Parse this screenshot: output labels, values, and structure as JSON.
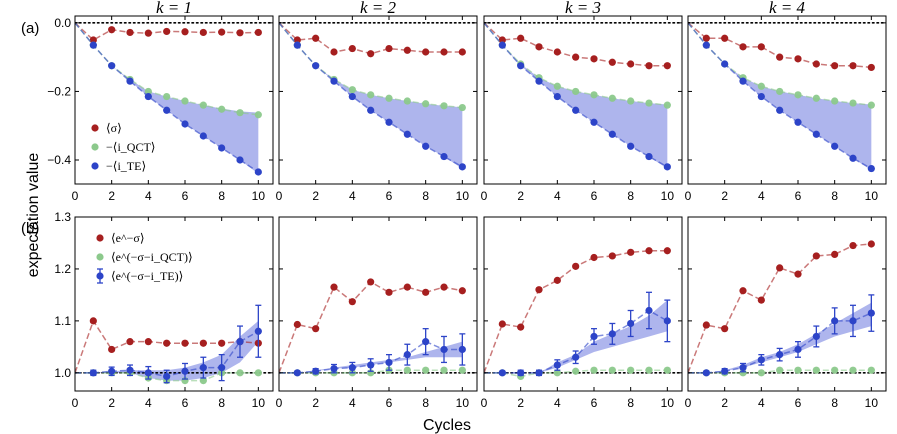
{
  "figure": {
    "xlabel": "Cycles",
    "ylabel": "expectation value",
    "panel_labels": [
      "(a)",
      "(b)"
    ],
    "column_titles": [
      "k = 1",
      "k = 2",
      "k = 3",
      "k = 4"
    ],
    "colors": {
      "red": "#a61f1f",
      "green": "#8cc98c",
      "blue": "#2d44c8",
      "band": "#8c96e6"
    }
  },
  "legend_a": [
    "⟨σ⟩",
    "−⟨i_QCT⟩",
    "−⟨i_TE⟩"
  ],
  "legend_b": [
    "⟨e^−σ⟩",
    "⟨e^(−σ−i_QCT)⟩",
    "⟨e^(−σ−i_TE)⟩"
  ],
  "chart_data": [
    {
      "type": "line",
      "row": "a",
      "title": "k = 1",
      "xlim": [
        0,
        10.8
      ],
      "ylim": [
        -0.47,
        0.02
      ],
      "xticks": [
        0,
        2,
        4,
        6,
        8,
        10
      ],
      "yticks": [
        0.0,
        -0.2,
        -0.4
      ],
      "ytick_labels": [
        "0.0",
        "−0.2",
        "−0.4"
      ],
      "x": [
        1,
        2,
        3,
        4,
        5,
        6,
        7,
        8,
        9,
        10
      ],
      "series": [
        {
          "name": "⟨σ⟩",
          "values": [
            -0.05,
            -0.02,
            -0.028,
            -0.03,
            -0.025,
            -0.026,
            -0.028,
            -0.027,
            -0.029,
            -0.028
          ]
        },
        {
          "name": "−⟨i_QCT⟩",
          "values": [
            -0.065,
            -0.125,
            -0.165,
            -0.2,
            -0.215,
            -0.228,
            -0.24,
            -0.252,
            -0.262,
            -0.268
          ]
        },
        {
          "name": "−⟨i_TE⟩",
          "values": [
            -0.065,
            -0.125,
            -0.17,
            -0.215,
            -0.255,
            -0.295,
            -0.33,
            -0.365,
            -0.4,
            -0.435
          ]
        }
      ],
      "band": {
        "lower": [
          -0.065,
          -0.125,
          -0.17,
          -0.215,
          -0.255,
          -0.295,
          -0.33,
          -0.365,
          -0.4,
          -0.44
        ],
        "upper": [
          -0.065,
          -0.125,
          -0.165,
          -0.2,
          -0.215,
          -0.228,
          -0.24,
          -0.25,
          -0.258,
          -0.262
        ]
      },
      "hline": 0.0
    },
    {
      "type": "line",
      "row": "a",
      "title": "k = 2",
      "xlim": [
        0,
        10.8
      ],
      "ylim": [
        -0.47,
        0.02
      ],
      "xticks": [
        0,
        2,
        4,
        6,
        8,
        10
      ],
      "yticks": [
        0.0,
        -0.2,
        -0.4
      ],
      "ytick_labels": [
        "",
        "",
        ""
      ],
      "x": [
        1,
        2,
        3,
        4,
        5,
        6,
        7,
        8,
        9,
        10
      ],
      "series": [
        {
          "name": "⟨σ⟩",
          "values": [
            -0.05,
            -0.045,
            -0.085,
            -0.075,
            -0.09,
            -0.075,
            -0.08,
            -0.085,
            -0.085,
            -0.085
          ]
        },
        {
          "name": "−⟨i_QCT⟩",
          "values": [
            -0.065,
            -0.125,
            -0.165,
            -0.195,
            -0.21,
            -0.22,
            -0.228,
            -0.236,
            -0.242,
            -0.247
          ]
        },
        {
          "name": "−⟨i_TE⟩",
          "values": [
            -0.065,
            -0.125,
            -0.17,
            -0.215,
            -0.255,
            -0.29,
            -0.325,
            -0.36,
            -0.39,
            -0.42
          ]
        }
      ],
      "band": {
        "lower": [
          -0.065,
          -0.125,
          -0.17,
          -0.215,
          -0.255,
          -0.29,
          -0.325,
          -0.36,
          -0.39,
          -0.425
        ],
        "upper": [
          -0.065,
          -0.125,
          -0.165,
          -0.195,
          -0.21,
          -0.22,
          -0.228,
          -0.236,
          -0.242,
          -0.246
        ]
      },
      "hline": 0.0
    },
    {
      "type": "line",
      "row": "a",
      "title": "k = 3",
      "xlim": [
        0,
        10.8
      ],
      "ylim": [
        -0.47,
        0.02
      ],
      "xticks": [
        0,
        2,
        4,
        6,
        8,
        10
      ],
      "yticks": [
        0.0,
        -0.2,
        -0.4
      ],
      "ytick_labels": [
        "",
        "",
        ""
      ],
      "x": [
        1,
        2,
        3,
        4,
        5,
        6,
        7,
        8,
        9,
        10
      ],
      "series": [
        {
          "name": "⟨σ⟩",
          "values": [
            -0.05,
            -0.045,
            -0.07,
            -0.085,
            -0.1,
            -0.105,
            -0.115,
            -0.12,
            -0.125,
            -0.125
          ]
        },
        {
          "name": "−⟨i_QCT⟩",
          "values": [
            -0.065,
            -0.12,
            -0.16,
            -0.185,
            -0.2,
            -0.21,
            -0.22,
            -0.228,
            -0.234,
            -0.24
          ]
        },
        {
          "name": "−⟨i_TE⟩",
          "values": [
            -0.065,
            -0.125,
            -0.17,
            -0.215,
            -0.255,
            -0.29,
            -0.325,
            -0.36,
            -0.39,
            -0.42
          ]
        }
      ],
      "band": {
        "lower": [
          -0.065,
          -0.125,
          -0.17,
          -0.215,
          -0.255,
          -0.29,
          -0.325,
          -0.36,
          -0.39,
          -0.425
        ],
        "upper": [
          -0.065,
          -0.12,
          -0.16,
          -0.185,
          -0.2,
          -0.21,
          -0.22,
          -0.228,
          -0.234,
          -0.238
        ]
      },
      "hline": 0.0
    },
    {
      "type": "line",
      "row": "a",
      "title": "k = 4",
      "xlim": [
        0,
        10.8
      ],
      "ylim": [
        -0.47,
        0.02
      ],
      "xticks": [
        0,
        2,
        4,
        6,
        8,
        10
      ],
      "yticks": [
        0.0,
        -0.2,
        -0.4
      ],
      "ytick_labels": [
        "",
        "",
        ""
      ],
      "x": [
        1,
        2,
        3,
        4,
        5,
        6,
        7,
        8,
        9,
        10
      ],
      "series": [
        {
          "name": "⟨σ⟩",
          "values": [
            -0.045,
            -0.045,
            -0.07,
            -0.07,
            -0.1,
            -0.105,
            -0.12,
            -0.125,
            -0.125,
            -0.13
          ]
        },
        {
          "name": "−⟨i_QCT⟩",
          "values": [
            -0.065,
            -0.12,
            -0.16,
            -0.185,
            -0.2,
            -0.21,
            -0.22,
            -0.228,
            -0.234,
            -0.24
          ]
        },
        {
          "name": "−⟨i_TE⟩",
          "values": [
            -0.065,
            -0.12,
            -0.17,
            -0.215,
            -0.255,
            -0.29,
            -0.325,
            -0.36,
            -0.395,
            -0.425
          ]
        }
      ],
      "band": {
        "lower": [
          -0.065,
          -0.12,
          -0.17,
          -0.215,
          -0.255,
          -0.29,
          -0.325,
          -0.36,
          -0.395,
          -0.43
        ],
        "upper": [
          -0.065,
          -0.12,
          -0.16,
          -0.185,
          -0.2,
          -0.21,
          -0.22,
          -0.228,
          -0.234,
          -0.238
        ]
      },
      "hline": 0.0
    },
    {
      "type": "line",
      "row": "b",
      "title": "k = 1",
      "xlim": [
        0,
        10.8
      ],
      "ylim": [
        0.965,
        1.3
      ],
      "xticks": [
        0,
        2,
        4,
        6,
        8,
        10
      ],
      "xtick_labels": [
        "0",
        "2",
        "4",
        "6",
        "8",
        "10"
      ],
      "yticks": [
        1.0,
        1.1,
        1.2,
        1.3
      ],
      "ytick_labels": [
        "1.0",
        "1.1",
        "1.2",
        "1.3"
      ],
      "x": [
        1,
        2,
        3,
        4,
        5,
        6,
        7,
        8,
        9,
        10
      ],
      "series": [
        {
          "name": "⟨e^−σ⟩",
          "values": [
            1.1,
            1.045,
            1.06,
            1.06,
            1.057,
            1.057,
            1.057,
            1.057,
            1.06,
            1.057
          ]
        },
        {
          "name": "⟨e^(−σ−i_QCT)⟩",
          "values": [
            1.0,
            1.0,
            1.0,
            0.99,
            0.985,
            0.985,
            0.985,
            1.0,
            1.0,
            1.0
          ]
        },
        {
          "name": "⟨e^(−σ−i_TE)⟩",
          "values": [
            1.0,
            1.003,
            1.005,
            1.0,
            0.993,
            1.003,
            1.01,
            1.01,
            1.06,
            1.08
          ],
          "err": [
            0.005,
            0.008,
            0.01,
            0.012,
            0.012,
            0.015,
            0.02,
            0.025,
            0.03,
            0.05
          ]
        }
      ],
      "band": {
        "lower": [
          1.0,
          1.0,
          1.0,
          0.99,
          0.985,
          0.985,
          0.99,
          1.0,
          1.02,
          1.06
        ],
        "upper": [
          1.0,
          1.003,
          1.005,
          1.005,
          1.005,
          1.01,
          1.02,
          1.035,
          1.07,
          1.1
        ]
      },
      "hline": 1.0
    },
    {
      "type": "line",
      "row": "b",
      "title": "k = 2",
      "xlim": [
        0,
        10.8
      ],
      "ylim": [
        0.965,
        1.3
      ],
      "xticks": [
        0,
        2,
        4,
        6,
        8,
        10
      ],
      "xtick_labels": [
        "0",
        "2",
        "4",
        "6",
        "8",
        "10"
      ],
      "yticks": [
        1.0,
        1.1,
        1.2,
        1.3
      ],
      "ytick_labels": [
        "",
        "",
        "",
        ""
      ],
      "x": [
        1,
        2,
        3,
        4,
        5,
        6,
        7,
        8,
        9,
        10
      ],
      "series": [
        {
          "name": "⟨e^−σ⟩",
          "values": [
            1.093,
            1.085,
            1.165,
            1.137,
            1.175,
            1.155,
            1.165,
            1.155,
            1.165,
            1.158
          ]
        },
        {
          "name": "⟨e^(−σ−i_QCT)⟩",
          "values": [
            1.0,
            1.0,
            1.0,
            1.0,
            1.0,
            1.005,
            1.005,
            1.005,
            1.005,
            1.005
          ]
        },
        {
          "name": "⟨e^(−σ−i_TE)⟩",
          "values": [
            1.0,
            1.003,
            1.008,
            1.01,
            1.015,
            1.02,
            1.035,
            1.06,
            1.045,
            1.045
          ],
          "err": [
            0.003,
            0.005,
            0.008,
            0.01,
            0.012,
            0.015,
            0.02,
            0.025,
            0.025,
            0.03
          ]
        }
      ],
      "band": {
        "lower": [
          1.0,
          1.003,
          1.008,
          1.01,
          1.015,
          1.02,
          1.025,
          1.03,
          1.03,
          1.03
        ],
        "upper": [
          1.0,
          1.005,
          1.01,
          1.015,
          1.02,
          1.025,
          1.03,
          1.04,
          1.05,
          1.06
        ]
      },
      "hline": 1.0
    },
    {
      "type": "line",
      "row": "b",
      "title": "k = 3",
      "xlim": [
        0,
        10.8
      ],
      "ylim": [
        0.965,
        1.3
      ],
      "xticks": [
        0,
        2,
        4,
        6,
        8,
        10
      ],
      "xtick_labels": [
        "0",
        "2",
        "4",
        "6",
        "8",
        "10"
      ],
      "yticks": [
        1.0,
        1.1,
        1.2,
        1.3
      ],
      "ytick_labels": [
        "",
        "",
        "",
        ""
      ],
      "x": [
        1,
        2,
        3,
        4,
        5,
        6,
        7,
        8,
        9,
        10
      ],
      "series": [
        {
          "name": "⟨e^−σ⟩",
          "values": [
            1.094,
            1.088,
            1.16,
            1.178,
            1.205,
            1.222,
            1.225,
            1.232,
            1.235,
            1.235
          ]
        },
        {
          "name": "⟨e^(−σ−i_QCT)⟩",
          "values": [
            1.0,
            0.993,
            1.0,
            1.0,
            1.003,
            1.005,
            1.005,
            1.005,
            1.005,
            1.005
          ]
        },
        {
          "name": "⟨e^(−σ−i_TE)⟩",
          "values": [
            1.0,
            1.0,
            1.0,
            1.015,
            1.03,
            1.07,
            1.075,
            1.095,
            1.12,
            1.1
          ],
          "err": [
            0.003,
            0.005,
            0.005,
            0.01,
            0.012,
            0.015,
            0.02,
            0.025,
            0.035,
            0.04
          ]
        }
      ],
      "band": {
        "lower": [
          1.0,
          1.0,
          1.0,
          1.01,
          1.025,
          1.04,
          1.05,
          1.06,
          1.07,
          1.08
        ],
        "upper": [
          1.0,
          1.0,
          1.0,
          1.02,
          1.035,
          1.06,
          1.075,
          1.09,
          1.11,
          1.14
        ]
      },
      "hline": 1.0
    },
    {
      "type": "line",
      "row": "b",
      "title": "k = 4",
      "xlim": [
        0,
        10.8
      ],
      "ylim": [
        0.965,
        1.3
      ],
      "xticks": [
        0,
        2,
        4,
        6,
        8,
        10
      ],
      "xtick_labels": [
        "0",
        "2",
        "4",
        "6",
        "8",
        "10"
      ],
      "yticks": [
        1.0,
        1.1,
        1.2,
        1.3
      ],
      "ytick_labels": [
        "",
        "",
        "",
        ""
      ],
      "x": [
        1,
        2,
        3,
        4,
        5,
        6,
        7,
        8,
        9,
        10
      ],
      "series": [
        {
          "name": "⟨e^−σ⟩",
          "values": [
            1.092,
            1.085,
            1.158,
            1.14,
            1.202,
            1.19,
            1.225,
            1.228,
            1.245,
            1.248
          ]
        },
        {
          "name": "⟨e^(−σ−i_QCT)⟩",
          "values": [
            1.0,
            1.0,
            1.0,
            1.0,
            1.005,
            1.005,
            1.005,
            1.005,
            1.005,
            1.005
          ]
        },
        {
          "name": "⟨e^(−σ−i_TE)⟩",
          "values": [
            1.0,
            1.003,
            1.01,
            1.025,
            1.035,
            1.045,
            1.07,
            1.1,
            1.1,
            1.115
          ],
          "err": [
            0.003,
            0.005,
            0.008,
            0.01,
            0.012,
            0.015,
            0.02,
            0.025,
            0.03,
            0.035
          ]
        }
      ],
      "band": {
        "lower": [
          1.0,
          1.003,
          1.01,
          1.02,
          1.03,
          1.04,
          1.055,
          1.07,
          1.08,
          1.09
        ],
        "upper": [
          1.0,
          1.005,
          1.015,
          1.03,
          1.04,
          1.055,
          1.075,
          1.095,
          1.115,
          1.135
        ]
      },
      "hline": 1.0
    }
  ]
}
